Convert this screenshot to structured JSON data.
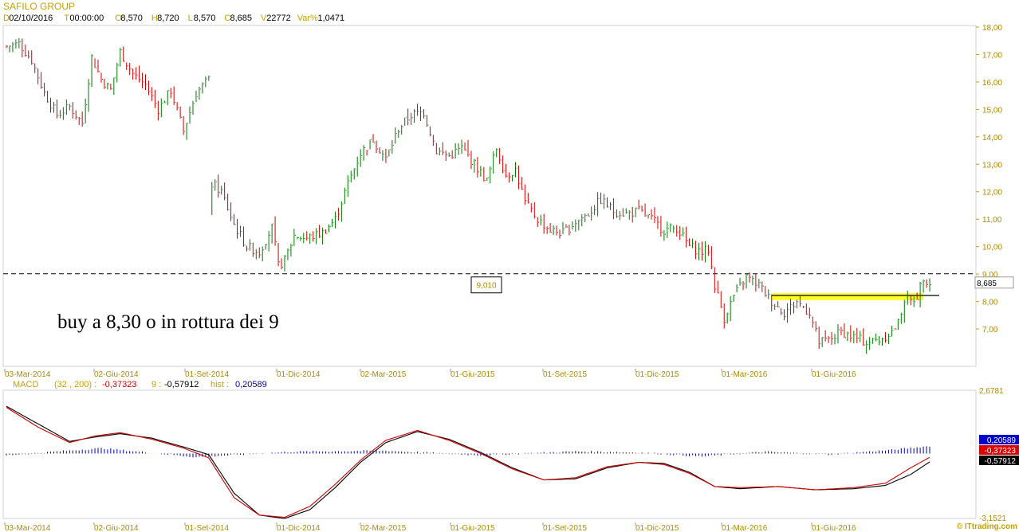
{
  "header": {
    "title": "SAFILO GROUP",
    "ohlc": [
      {
        "k": "D",
        "v": "02/10/2016"
      },
      {
        "k": "T",
        "v": "00:00:00"
      },
      {
        "k": "O",
        "v": "8,570"
      },
      {
        "k": "H",
        "v": "8,720"
      },
      {
        "k": "L",
        "v": "8,570"
      },
      {
        "k": "C",
        "v": "8,685"
      },
      {
        "k": "V",
        "v": "22772"
      },
      {
        "k": "Var%",
        "v": "1,0471"
      }
    ]
  },
  "annotations": {
    "note": "buy a 8,30 o in rottura dei 9",
    "level_label": "9,010",
    "last_price": "8,685",
    "copyright": "© ITtrading.com"
  },
  "colors": {
    "up": "#007a00",
    "down": "#d00000",
    "axis": "#c8a000",
    "macd_line": "#000000",
    "signal_line": "#d00000",
    "hist": "#0000aa",
    "zone": "#ffff00"
  },
  "chart_data": [
    {
      "type": "candlestick",
      "title": "SAFILO GROUP",
      "ylim": [
        6.0,
        18.0
      ],
      "y_ticks": [
        "18,00",
        "17,00",
        "16,00",
        "15,00",
        "14,00",
        "13,00",
        "12,00",
        "11,00",
        "10,00",
        "9,00",
        "8,00",
        "7,00"
      ],
      "x_ticks": [
        "03-Mar-2014",
        "02-Giu-2014",
        "01-Set-2014",
        "01-Dic-2014",
        "02-Mar-2015",
        "01-Giu-2015",
        "01-Set-2015",
        "01-Dic-2015",
        "01-Mar-2016",
        "01-Giu-2016"
      ],
      "price_path": [
        {
          "i": 0,
          "c": 17.3
        },
        {
          "i": 4,
          "c": 17.4
        },
        {
          "i": 8,
          "c": 16.8
        },
        {
          "i": 12,
          "c": 15.6
        },
        {
          "i": 16,
          "c": 14.8
        },
        {
          "i": 20,
          "c": 15.1
        },
        {
          "i": 24,
          "c": 14.5
        },
        {
          "i": 27,
          "c": 16.9
        },
        {
          "i": 30,
          "c": 16.1
        },
        {
          "i": 33,
          "c": 15.7
        },
        {
          "i": 36,
          "c": 17.1
        },
        {
          "i": 40,
          "c": 16.3
        },
        {
          "i": 44,
          "c": 15.9
        },
        {
          "i": 48,
          "c": 15.0
        },
        {
          "i": 52,
          "c": 15.7
        },
        {
          "i": 56,
          "c": 14.2
        },
        {
          "i": 60,
          "c": 15.6
        },
        {
          "i": 64,
          "c": 16.1
        },
        {
          "i": 65,
          "c": 12.3
        },
        {
          "i": 68,
          "c": 12.0
        },
        {
          "i": 72,
          "c": 10.8
        },
        {
          "i": 76,
          "c": 10.0
        },
        {
          "i": 80,
          "c": 9.8
        },
        {
          "i": 84,
          "c": 10.7
        },
        {
          "i": 86,
          "c": 9.3
        },
        {
          "i": 88,
          "c": 9.5
        },
        {
          "i": 91,
          "c": 10.4
        },
        {
          "i": 95,
          "c": 10.3
        },
        {
          "i": 100,
          "c": 10.5
        },
        {
          "i": 104,
          "c": 11.0
        },
        {
          "i": 108,
          "c": 12.3
        },
        {
          "i": 112,
          "c": 13.4
        },
        {
          "i": 116,
          "c": 13.9
        },
        {
          "i": 120,
          "c": 13.2
        },
        {
          "i": 124,
          "c": 14.3
        },
        {
          "i": 128,
          "c": 14.8
        },
        {
          "i": 132,
          "c": 14.9
        },
        {
          "i": 136,
          "c": 13.5
        },
        {
          "i": 140,
          "c": 13.3
        },
        {
          "i": 144,
          "c": 13.6
        },
        {
          "i": 148,
          "c": 13.0
        },
        {
          "i": 152,
          "c": 12.4
        },
        {
          "i": 155,
          "c": 13.6
        },
        {
          "i": 158,
          "c": 12.6
        },
        {
          "i": 161,
          "c": 12.8
        },
        {
          "i": 164,
          "c": 11.6
        },
        {
          "i": 168,
          "c": 11.0
        },
        {
          "i": 172,
          "c": 10.6
        },
        {
          "i": 176,
          "c": 10.5
        },
        {
          "i": 180,
          "c": 10.9
        },
        {
          "i": 184,
          "c": 11.2
        },
        {
          "i": 188,
          "c": 11.7
        },
        {
          "i": 192,
          "c": 11.3
        },
        {
          "i": 196,
          "c": 11.2
        },
        {
          "i": 200,
          "c": 11.3
        },
        {
          "i": 204,
          "c": 11.0
        },
        {
          "i": 208,
          "c": 10.6
        },
        {
          "i": 212,
          "c": 10.7
        },
        {
          "i": 216,
          "c": 10.0
        },
        {
          "i": 220,
          "c": 9.8
        },
        {
          "i": 222,
          "c": 9.9
        },
        {
          "i": 224,
          "c": 8.6
        },
        {
          "i": 227,
          "c": 7.4
        },
        {
          "i": 230,
          "c": 8.2
        },
        {
          "i": 234,
          "c": 8.9
        },
        {
          "i": 238,
          "c": 8.6
        },
        {
          "i": 242,
          "c": 8.0
        },
        {
          "i": 246,
          "c": 7.6
        },
        {
          "i": 250,
          "c": 8.0
        },
        {
          "i": 254,
          "c": 7.6
        },
        {
          "i": 257,
          "c": 6.5
        },
        {
          "i": 260,
          "c": 6.6
        },
        {
          "i": 264,
          "c": 6.9
        },
        {
          "i": 268,
          "c": 6.7
        },
        {
          "i": 272,
          "c": 6.5
        },
        {
          "i": 276,
          "c": 6.6
        },
        {
          "i": 280,
          "c": 6.9
        },
        {
          "i": 282,
          "c": 7.2
        },
        {
          "i": 284,
          "c": 8.1
        },
        {
          "i": 286,
          "c": 8.0
        },
        {
          "i": 288,
          "c": 8.2
        },
        {
          "i": 290,
          "c": 8.9
        },
        {
          "i": 292,
          "c": 8.69
        }
      ],
      "level": 9.01,
      "zone": [
        8.05,
        8.3
      ],
      "hline": 8.22
    },
    {
      "type": "macd",
      "title": "MACD",
      "params": "(32 , 200) :",
      "macd_value": "-0,37323",
      "signal_period": "9 :",
      "signal_value": "-0,57912",
      "hist_label": "hist :",
      "hist_value": "0,20589",
      "ylim": [
        -3.1521,
        2.6781
      ],
      "y_ticks": [
        "2,6781",
        "-3,1521"
      ],
      "macd_path": [
        {
          "i": 0,
          "v": 1.9
        },
        {
          "i": 10,
          "v": 1.0
        },
        {
          "i": 20,
          "v": 0.3
        },
        {
          "i": 28,
          "v": 0.6
        },
        {
          "i": 36,
          "v": 0.75
        },
        {
          "i": 46,
          "v": 0.45
        },
        {
          "i": 56,
          "v": 0.05
        },
        {
          "i": 64,
          "v": -0.4
        },
        {
          "i": 72,
          "v": -2.2
        },
        {
          "i": 80,
          "v": -3.0
        },
        {
          "i": 88,
          "v": -3.1
        },
        {
          "i": 96,
          "v": -2.6
        },
        {
          "i": 104,
          "v": -1.6
        },
        {
          "i": 112,
          "v": -0.5
        },
        {
          "i": 120,
          "v": 0.4
        },
        {
          "i": 130,
          "v": 0.85
        },
        {
          "i": 140,
          "v": 0.4
        },
        {
          "i": 150,
          "v": -0.2
        },
        {
          "i": 160,
          "v": -0.9
        },
        {
          "i": 170,
          "v": -1.4
        },
        {
          "i": 180,
          "v": -1.3
        },
        {
          "i": 190,
          "v": -0.8
        },
        {
          "i": 200,
          "v": -0.6
        },
        {
          "i": 208,
          "v": -0.7
        },
        {
          "i": 216,
          "v": -1.1
        },
        {
          "i": 224,
          "v": -1.7
        },
        {
          "i": 232,
          "v": -1.75
        },
        {
          "i": 244,
          "v": -1.7
        },
        {
          "i": 256,
          "v": -1.85
        },
        {
          "i": 268,
          "v": -1.75
        },
        {
          "i": 278,
          "v": -1.55
        },
        {
          "i": 286,
          "v": -0.85
        },
        {
          "i": 292,
          "v": -0.37
        }
      ],
      "signal_path": [
        {
          "i": 0,
          "v": 1.95
        },
        {
          "i": 10,
          "v": 1.15
        },
        {
          "i": 20,
          "v": 0.35
        },
        {
          "i": 28,
          "v": 0.55
        },
        {
          "i": 36,
          "v": 0.7
        },
        {
          "i": 46,
          "v": 0.5
        },
        {
          "i": 56,
          "v": 0.1
        },
        {
          "i": 64,
          "v": -0.25
        },
        {
          "i": 72,
          "v": -2.0
        },
        {
          "i": 80,
          "v": -3.0
        },
        {
          "i": 88,
          "v": -3.15
        },
        {
          "i": 96,
          "v": -2.75
        },
        {
          "i": 104,
          "v": -1.75
        },
        {
          "i": 112,
          "v": -0.6
        },
        {
          "i": 120,
          "v": 0.3
        },
        {
          "i": 130,
          "v": 0.8
        },
        {
          "i": 140,
          "v": 0.45
        },
        {
          "i": 150,
          "v": -0.15
        },
        {
          "i": 160,
          "v": -0.85
        },
        {
          "i": 170,
          "v": -1.4
        },
        {
          "i": 180,
          "v": -1.35
        },
        {
          "i": 190,
          "v": -0.85
        },
        {
          "i": 200,
          "v": -0.6
        },
        {
          "i": 208,
          "v": -0.65
        },
        {
          "i": 216,
          "v": -1.05
        },
        {
          "i": 224,
          "v": -1.7
        },
        {
          "i": 232,
          "v": -1.8
        },
        {
          "i": 244,
          "v": -1.7
        },
        {
          "i": 256,
          "v": -1.85
        },
        {
          "i": 268,
          "v": -1.8
        },
        {
          "i": 278,
          "v": -1.65
        },
        {
          "i": 286,
          "v": -1.15
        },
        {
          "i": 292,
          "v": -0.58
        }
      ],
      "hist_path": [
        {
          "i": 0,
          "v": -0.05
        },
        {
          "i": 30,
          "v": 0.15
        },
        {
          "i": 60,
          "v": -0.1
        },
        {
          "i": 90,
          "v": 0.05
        },
        {
          "i": 120,
          "v": 0.08
        },
        {
          "i": 150,
          "v": -0.05
        },
        {
          "i": 180,
          "v": 0.06
        },
        {
          "i": 200,
          "v": 0.03
        },
        {
          "i": 220,
          "v": -0.08
        },
        {
          "i": 240,
          "v": 0.05
        },
        {
          "i": 260,
          "v": -0.03
        },
        {
          "i": 280,
          "v": 0.1
        },
        {
          "i": 292,
          "v": 0.21
        }
      ],
      "badges": [
        "0,20589",
        "-0,37323",
        "-0,57912"
      ]
    }
  ]
}
